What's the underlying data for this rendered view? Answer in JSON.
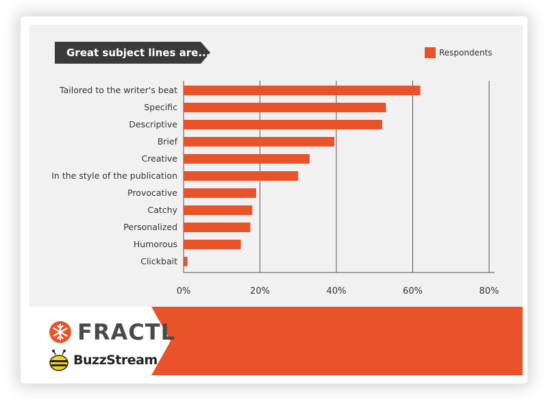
{
  "title": "Great subject lines are...",
  "legend": {
    "label": "Respondents",
    "color": "#e8532a"
  },
  "chart_data": {
    "type": "bar",
    "orientation": "horizontal",
    "categories": [
      "Tailored to the writer's beat",
      "Specific",
      "Descriptive",
      "Brief",
      "Creative",
      "In the style of the publication",
      "Provocative",
      "Catchy",
      "Personalized",
      "Humorous",
      "Clickbait"
    ],
    "series": [
      {
        "name": "Respondents",
        "values": [
          62,
          53,
          52,
          39.5,
          33,
          30,
          19,
          18,
          17.5,
          15,
          1
        ],
        "color": "#e8532a"
      }
    ],
    "xlim": [
      0,
      80
    ],
    "xticks": [
      0,
      20,
      40,
      60,
      80
    ],
    "xtick_labels": [
      "0%",
      "20%",
      "40%",
      "60%",
      "80%"
    ],
    "grid": "vertical",
    "legend_position": "top-right"
  },
  "footer": {
    "brands": [
      "FRACTL",
      "BuzzStream"
    ],
    "accent_color": "#e8532a"
  }
}
